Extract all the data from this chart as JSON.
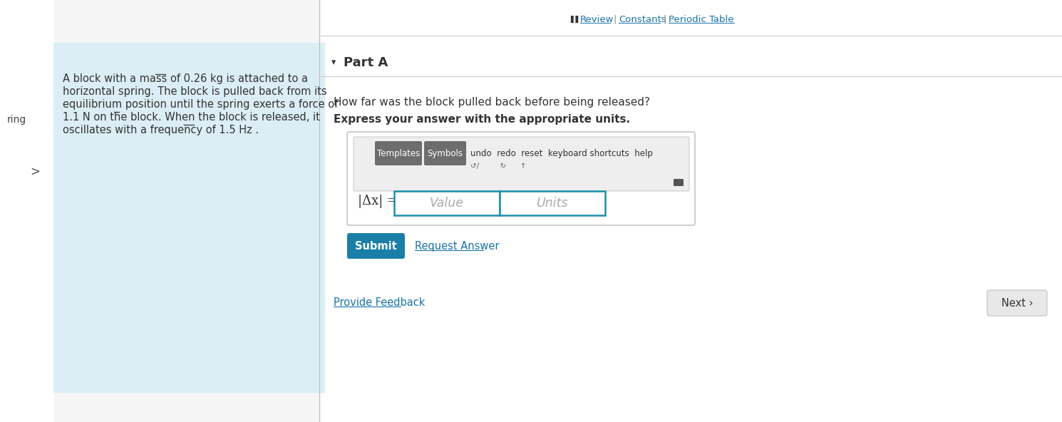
{
  "bg_color": "#f5f5f5",
  "right_panel_bg": "#ffffff",
  "left_panel_bg": "#dceef5",
  "sidebar_bg": "#ffffff",
  "top_link_color": "#1a73a7",
  "top_separator_color": "#888888",
  "top_icon_color": "#333333",
  "part_label": "Part A",
  "part_label_fontsize": 13,
  "part_arrow": "▾",
  "question_text": "How far was the block pulled back before being released?",
  "bold_text": "Express your answer with the appropriate units.",
  "problem_text_lines": [
    "A block with a mass of 0.26 kg is attached to a",
    "horizontal spring. The block is pulled back from its",
    "equilibrium position until the spring exerts a force of",
    "1.1 N on the block. When the block is released, it",
    "oscillates with a frequency of 1.5 Hz ."
  ],
  "problem_text_fontsize": 10.5,
  "side_label": "ring",
  "toolbar_buttons": [
    "Templates",
    "Symbols"
  ],
  "toolbar_btn_bg": "#6d6d6d",
  "toolbar_btn_color": "#ffffff",
  "input_label": "|Δx| =",
  "value_placeholder": "Value",
  "units_placeholder": "Units",
  "input_border_color": "#1a8faa",
  "input_bg": "#ffffff",
  "placeholder_color": "#aaaaaa",
  "submit_btn_text": "Submit",
  "submit_btn_bg": "#1a7fa8",
  "submit_btn_color": "#ffffff",
  "request_link_text": "Request Answer",
  "request_link_color": "#1a73a7",
  "feedback_link_text": "Provide Feedback",
  "feedback_link_color": "#1a73a7",
  "next_btn_text": "Next ›",
  "next_btn_bg": "#e8e8e8",
  "next_btn_color": "#333333",
  "divider_color": "#cccccc",
  "left_divider_color": "#bbbbbb",
  "figsize": [
    14.9,
    5.92
  ],
  "dpi": 100
}
